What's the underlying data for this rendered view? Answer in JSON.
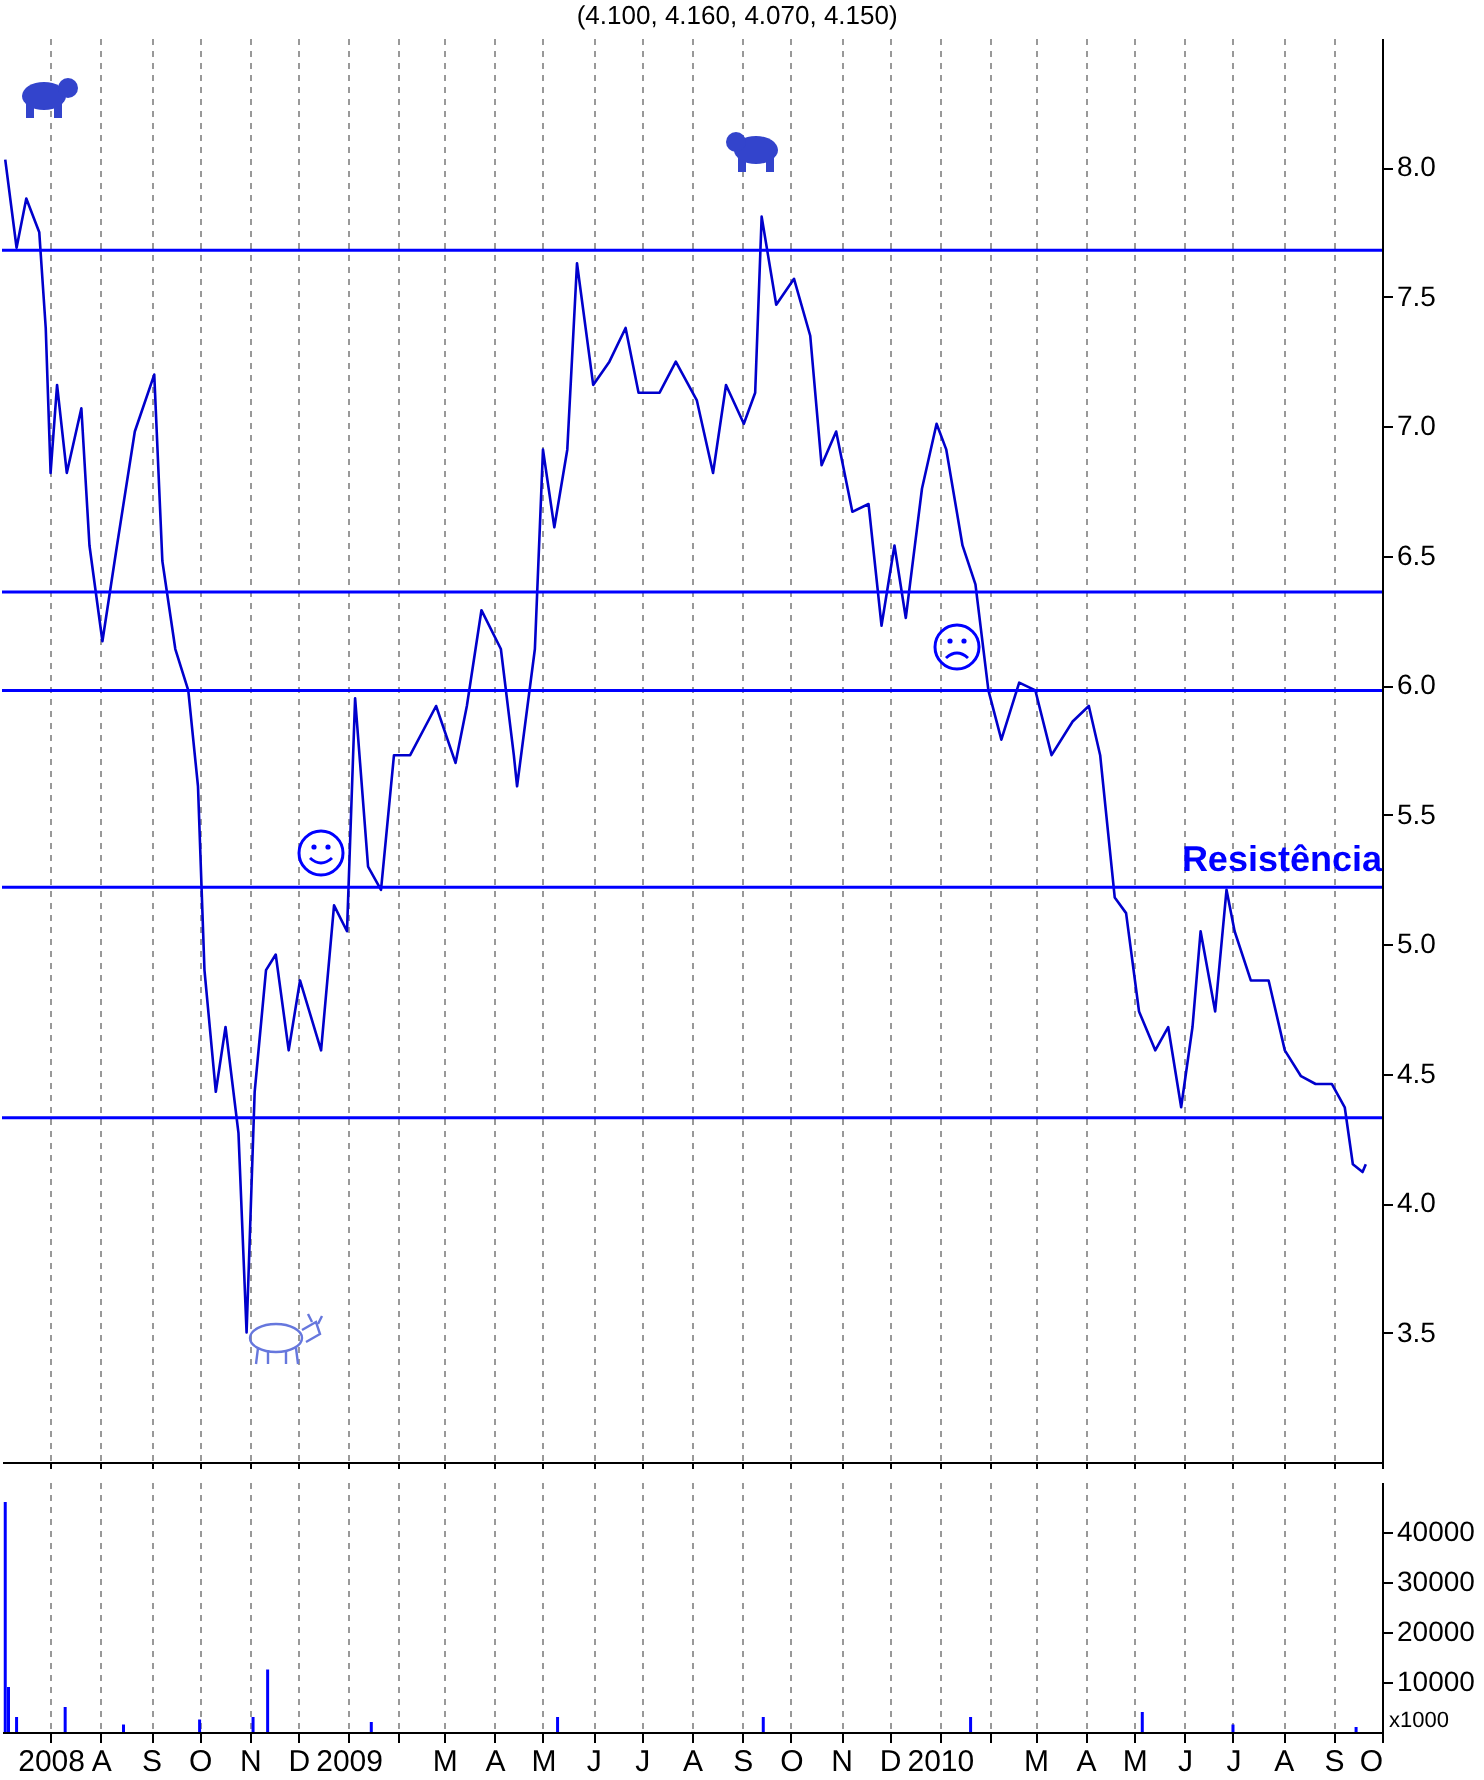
{
  "chart_data": [
    {
      "type": "line",
      "title": "(4.100, 4.160, 4.070, 4.150)",
      "x": [
        "2008-06-03",
        "2008-06-10",
        "2008-06-16",
        "2008-06-24",
        "2008-06-28",
        "2008-07-01",
        "2008-07-05",
        "2008-07-11",
        "2008-07-20",
        "2008-07-25",
        "2008-08-02",
        "2008-08-11",
        "2008-08-22",
        "2008-09-03",
        "2008-09-08",
        "2008-09-16",
        "2008-09-24",
        "2008-09-30",
        "2008-10-04",
        "2008-10-11",
        "2008-10-17",
        "2008-10-25",
        "2008-10-30",
        "2008-11-04",
        "2008-11-11",
        "2008-11-17",
        "2008-11-25",
        "2008-12-02",
        "2008-12-15",
        "2008-12-23",
        "2008-12-31",
        "2009-01-05",
        "2009-01-13",
        "2009-01-21",
        "2009-01-29",
        "2009-02-08",
        "2009-02-24",
        "2009-03-08",
        "2009-03-15",
        "2009-03-24",
        "2009-04-05",
        "2009-04-13",
        "2009-04-15",
        "2009-04-26",
        "2009-05-01",
        "2009-05-08",
        "2009-05-16",
        "2009-05-22",
        "2009-06-01",
        "2009-06-11",
        "2009-06-21",
        "2009-06-29",
        "2009-07-12",
        "2009-07-22",
        "2009-08-04",
        "2009-08-14",
        "2009-08-22",
        "2009-09-02",
        "2009-09-09",
        "2009-09-13",
        "2009-09-22",
        "2009-10-03",
        "2009-10-13",
        "2009-10-20",
        "2009-10-29",
        "2009-11-08",
        "2009-11-18",
        "2009-11-26",
        "2009-12-04",
        "2009-12-11",
        "2009-12-21",
        "2009-12-30",
        "2010-01-05",
        "2010-01-15",
        "2010-01-23",
        "2010-01-31",
        "2010-02-08",
        "2010-02-19",
        "2010-03-01",
        "2010-03-11",
        "2010-03-24",
        "2010-04-03",
        "2010-04-10",
        "2010-04-19",
        "2010-04-26",
        "2010-05-04",
        "2010-05-14",
        "2010-05-22",
        "2010-05-30",
        "2010-06-06",
        "2010-06-11",
        "2010-06-20",
        "2010-06-27",
        "2010-07-02",
        "2010-07-12",
        "2010-07-23",
        "2010-08-02",
        "2010-08-12",
        "2010-08-21",
        "2010-08-31",
        "2010-09-08",
        "2010-09-13",
        "2010-09-19",
        "2010-09-21"
      ],
      "series": [
        {
          "color": "#0000cc",
          "values": [
            8.03,
            7.69,
            7.88,
            7.75,
            7.38,
            6.82,
            7.16,
            6.82,
            7.07,
            6.54,
            6.17,
            6.54,
            6.98,
            7.2,
            6.48,
            6.14,
            5.98,
            5.61,
            4.9,
            4.43,
            4.68,
            4.27,
            3.5,
            4.43,
            4.9,
            4.96,
            4.59,
            4.86,
            4.59,
            5.15,
            5.05,
            5.95,
            5.3,
            5.21,
            5.73,
            5.73,
            5.92,
            5.7,
            5.92,
            6.29,
            6.14,
            5.73,
            5.61,
            6.14,
            6.91,
            6.61,
            6.91,
            7.63,
            7.16,
            7.25,
            7.38,
            7.13,
            7.13,
            7.25,
            7.1,
            6.82,
            7.16,
            7.01,
            7.13,
            7.81,
            7.47,
            7.57,
            7.35,
            6.85,
            6.98,
            6.67,
            6.7,
            6.23,
            6.54,
            6.26,
            6.76,
            7.01,
            6.91,
            6.54,
            6.39,
            5.98,
            5.79,
            6.01,
            5.98,
            5.73,
            5.86,
            5.92,
            5.73,
            5.18,
            5.12,
            4.74,
            4.59,
            4.68,
            4.37,
            4.68,
            5.05,
            4.74,
            5.21,
            5.05,
            4.86,
            4.86,
            4.59,
            4.49,
            4.46,
            4.46,
            4.37,
            4.15,
            4.12,
            4.15
          ]
        }
      ],
      "xlim": [
        "2008-06-01",
        "2010-10-01"
      ],
      "xticks": [
        {
          "value": "2008-07-01",
          "label": null
        },
        {
          "value": "2008-08-01",
          "label": null
        },
        {
          "value": "2008-09-01",
          "label": null
        },
        {
          "value": "2008-10-01",
          "label": null
        },
        {
          "value": "2008-11-01",
          "label": null
        },
        {
          "value": "2008-12-01",
          "label": null
        },
        {
          "value": "2009-01-01",
          "label": null
        },
        {
          "value": "2009-02-01",
          "label": null
        },
        {
          "value": "2009-03-01",
          "label": null
        },
        {
          "value": "2009-04-01",
          "label": null
        },
        {
          "value": "2009-05-01",
          "label": null
        },
        {
          "value": "2009-06-01",
          "label": null
        },
        {
          "value": "2009-07-01",
          "label": null
        },
        {
          "value": "2009-08-01",
          "label": null
        },
        {
          "value": "2009-09-01",
          "label": null
        },
        {
          "value": "2009-10-01",
          "label": null
        },
        {
          "value": "2009-11-01",
          "label": null
        },
        {
          "value": "2009-12-01",
          "label": null
        },
        {
          "value": "2010-01-01",
          "label": null
        },
        {
          "value": "2010-02-01",
          "label": null
        },
        {
          "value": "2010-03-01",
          "label": null
        },
        {
          "value": "2010-04-01",
          "label": null
        },
        {
          "value": "2010-05-01",
          "label": null
        },
        {
          "value": "2010-06-01",
          "label": null
        },
        {
          "value": "2010-07-01",
          "label": null
        },
        {
          "value": "2010-08-01",
          "label": null
        },
        {
          "value": "2010-09-01",
          "label": null
        },
        {
          "value": "2010-10-01",
          "label": null
        }
      ],
      "ylim": [
        3.0,
        8.5
      ],
      "yticks": [
        {
          "value": 3.5,
          "label": "3.5"
        },
        {
          "value": 4,
          "label": "4.0"
        },
        {
          "value": 4.5,
          "label": "4.5"
        },
        {
          "value": 5,
          "label": "5.0"
        },
        {
          "value": 5.5,
          "label": "5.5"
        },
        {
          "value": 6,
          "label": "6.0"
        },
        {
          "value": 6.5,
          "label": "6.5"
        },
        {
          "value": 7,
          "label": "7.0"
        },
        {
          "value": 7.5,
          "label": "7.5"
        },
        {
          "value": 8,
          "label": "8.0"
        }
      ],
      "ref_lines": [
        {
          "axis": "y",
          "value": 7.68,
          "label": null,
          "color": "#0000ff"
        },
        {
          "axis": "y",
          "value": 6.36,
          "label": null,
          "color": "#0000ff"
        },
        {
          "axis": "y",
          "value": 5.98,
          "label": null,
          "color": "#0000ff"
        },
        {
          "axis": "y",
          "value": 5.22,
          "label": "Resistência",
          "color": "#0000ff"
        },
        {
          "axis": "y",
          "value": 4.33,
          "label": null,
          "color": "#0000ff"
        }
      ],
      "grid": "x",
      "tick_labels": "y"
    },
    {
      "type": "bar",
      "ylabel": "x1000",
      "x": [
        "2008-06-03",
        "2008-06-05",
        "2008-06-10",
        "2008-07-10",
        "2008-08-15",
        "2008-10-01",
        "2008-11-03",
        "2008-11-12",
        "2009-01-15",
        "2009-05-10",
        "2009-09-14",
        "2010-01-20",
        "2010-05-06",
        "2010-07-01",
        "2010-09-15"
      ],
      "series": [
        {
          "color": "#0000ff",
          "values": [
            46000,
            9000,
            3000,
            5000,
            1500,
            2500,
            3000,
            12500,
            2000,
            3000,
            3000,
            3000,
            4000,
            1500,
            1000
          ]
        }
      ],
      "xlim": [
        "2008-06-01",
        "2010-10-01"
      ],
      "xticks": [
        {
          "value": "2008-07-01",
          "label": "2008"
        },
        {
          "value": "2008-08-01",
          "label": "A"
        },
        {
          "value": "2008-09-01",
          "label": "S"
        },
        {
          "value": "2008-10-01",
          "label": "O"
        },
        {
          "value": "2008-11-01",
          "label": "N"
        },
        {
          "value": "2008-12-01",
          "label": "D"
        },
        {
          "value": "2009-01-01",
          "label": "2009"
        },
        {
          "value": "2009-02-01",
          "label": null
        },
        {
          "value": "2009-03-01",
          "label": "M"
        },
        {
          "value": "2009-04-01",
          "label": "A"
        },
        {
          "value": "2009-05-01",
          "label": "M"
        },
        {
          "value": "2009-06-01",
          "label": "J"
        },
        {
          "value": "2009-07-01",
          "label": "J"
        },
        {
          "value": "2009-08-01",
          "label": "A"
        },
        {
          "value": "2009-09-01",
          "label": "S"
        },
        {
          "value": "2009-10-01",
          "label": "O"
        },
        {
          "value": "2009-11-01",
          "label": "N"
        },
        {
          "value": "2009-12-01",
          "label": "D"
        },
        {
          "value": "2010-01-01",
          "label": "2010"
        },
        {
          "value": "2010-02-01",
          "label": null
        },
        {
          "value": "2010-03-01",
          "label": "M"
        },
        {
          "value": "2010-04-01",
          "label": "A"
        },
        {
          "value": "2010-05-01",
          "label": "M"
        },
        {
          "value": "2010-06-01",
          "label": "J"
        },
        {
          "value": "2010-07-01",
          "label": "J"
        },
        {
          "value": "2010-08-01",
          "label": "A"
        },
        {
          "value": "2010-09-01",
          "label": "S"
        },
        {
          "value": "2010-10-01",
          "label": "O"
        }
      ],
      "ylim": [
        0,
        50000
      ],
      "yticks": [
        10000,
        20000,
        30000,
        40000
      ],
      "grid": "x"
    }
  ]
}
